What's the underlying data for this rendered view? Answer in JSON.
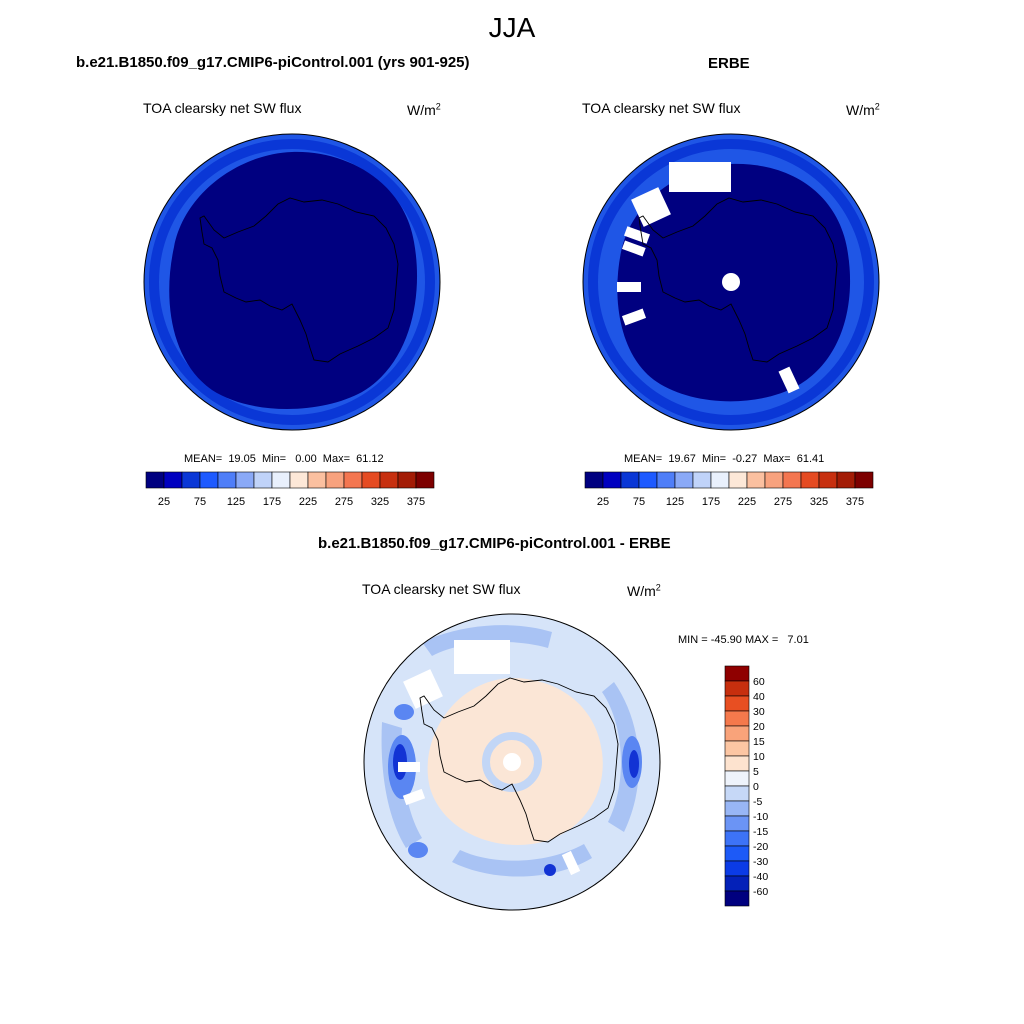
{
  "figure": {
    "title": "JJA"
  },
  "panels": [
    {
      "case_title": "b.e21.B1850.f09_g17.CMIP6-piControl.001 (yrs 901-925)",
      "left_string": "TOA clearsky net SW flux",
      "units_base": "W/m",
      "units_exp": "2",
      "stats": "MEAN=  19.05  Min=   0.00  Max=  61.12"
    },
    {
      "case_title": "ERBE",
      "left_string": "TOA clearsky net SW flux",
      "units_base": "W/m",
      "units_exp": "2",
      "stats": "MEAN=  19.67  Min=  -0.27  Max=  61.41"
    },
    {
      "case_title": "b.e21.B1850.f09_g17.CMIP6-piControl.001 - ERBE",
      "left_string": "TOA clearsky net SW flux",
      "units_base": "W/m",
      "units_exp": "2",
      "stats": "MIN = -45.90 MAX =   7.01"
    }
  ],
  "field_colorbar": {
    "colors": [
      "#000080",
      "#0000c0",
      "#0a37d6",
      "#1e5aff",
      "#4f7ef8",
      "#8aa9f7",
      "#c0d3f9",
      "#e9f0fc",
      "#fde8d8",
      "#fbc0a0",
      "#f8a27e",
      "#f47650",
      "#e54b22",
      "#c73010",
      "#a31c06",
      "#7d0000"
    ],
    "labels": [
      "25",
      "75",
      "125",
      "175",
      "225",
      "275",
      "325",
      "375"
    ]
  },
  "diff_colorbar": {
    "colors": [
      "#00007f",
      "#0421b8",
      "#0b3be6",
      "#1d5af7",
      "#3d73f7",
      "#6b94f5",
      "#98b6f5",
      "#c6d8f7",
      "#eef3fb",
      "#fde3cf",
      "#fcc6a3",
      "#f9a37a",
      "#f5794c",
      "#e84f22",
      "#c72f0e",
      "#8f0000"
    ],
    "labels": [
      "60",
      "40",
      "30",
      "20",
      "15",
      "10",
      "5",
      "0",
      "-5",
      "-10",
      "-15",
      "-20",
      "-30",
      "-40",
      "-60"
    ]
  },
  "map_colors": {
    "ocean_edge": "#1f56e6",
    "mid_band": "#0a37d6",
    "interior": "#000080",
    "diff_base": "#d6e4f9",
    "diff_land": "#fbe6d6",
    "diff_blue_light": "#a9c3f4",
    "diff_blue_mid": "#5a86f2",
    "diff_blue_dark": "#1233d4",
    "diff_ring": "#c2d6f6",
    "coast": "#000000"
  }
}
